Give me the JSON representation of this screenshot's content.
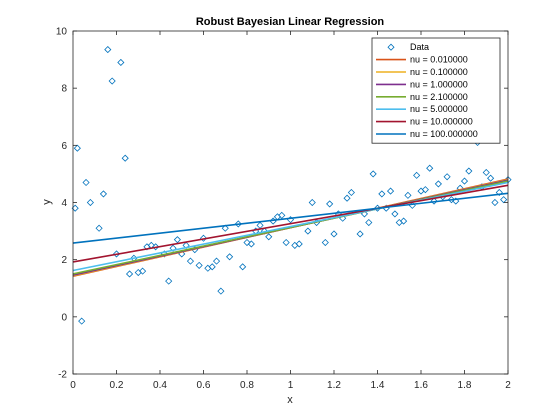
{
  "chart_data": {
    "type": "scatter",
    "title": "Robust Bayesian Linear Regression",
    "xlabel": "x",
    "ylabel": "y",
    "xlim": [
      0,
      2
    ],
    "ylim": [
      -2,
      10
    ],
    "xticks": [
      0,
      0.2,
      0.4,
      0.6,
      0.8,
      1,
      1.2,
      1.4,
      1.6,
      1.8,
      2
    ],
    "xtick_labels": [
      "0",
      "0.2",
      "0.4",
      "0.6",
      "0.8",
      "1",
      "1.2",
      "1.4",
      "1.6",
      "1.8",
      "2"
    ],
    "yticks": [
      -2,
      0,
      2,
      4,
      6,
      8,
      10
    ],
    "ytick_labels": [
      "-2",
      "0",
      "2",
      "4",
      "6",
      "8",
      "10"
    ],
    "grid": false,
    "legend_position": "top-right",
    "data_marker": "open-diamond",
    "data_series": {
      "name": "Data",
      "color": "#0072BD",
      "points": [
        [
          0.01,
          3.8
        ],
        [
          0.02,
          5.9
        ],
        [
          0.04,
          -0.15
        ],
        [
          0.06,
          4.7
        ],
        [
          0.08,
          4.0
        ],
        [
          0.12,
          3.1
        ],
        [
          0.14,
          4.3
        ],
        [
          0.16,
          9.35
        ],
        [
          0.18,
          8.25
        ],
        [
          0.2,
          2.2
        ],
        [
          0.22,
          8.9
        ],
        [
          0.24,
          5.55
        ],
        [
          0.26,
          1.5
        ],
        [
          0.28,
          2.05
        ],
        [
          0.3,
          1.55
        ],
        [
          0.32,
          1.6
        ],
        [
          0.34,
          2.45
        ],
        [
          0.36,
          2.5
        ],
        [
          0.38,
          2.45
        ],
        [
          0.42,
          2.2
        ],
        [
          0.44,
          1.25
        ],
        [
          0.46,
          2.4
        ],
        [
          0.48,
          2.7
        ],
        [
          0.5,
          2.2
        ],
        [
          0.52,
          2.5
        ],
        [
          0.54,
          1.95
        ],
        [
          0.56,
          2.35
        ],
        [
          0.58,
          1.8
        ],
        [
          0.6,
          2.75
        ],
        [
          0.62,
          1.7
        ],
        [
          0.64,
          1.75
        ],
        [
          0.66,
          1.95
        ],
        [
          0.68,
          0.9
        ],
        [
          0.7,
          3.1
        ],
        [
          0.72,
          2.1
        ],
        [
          0.76,
          3.25
        ],
        [
          0.78,
          1.75
        ],
        [
          0.8,
          2.6
        ],
        [
          0.82,
          2.55
        ],
        [
          0.84,
          3.0
        ],
        [
          0.86,
          3.2
        ],
        [
          0.88,
          3.0
        ],
        [
          0.9,
          2.8
        ],
        [
          0.92,
          3.35
        ],
        [
          0.94,
          3.5
        ],
        [
          0.96,
          3.55
        ],
        [
          0.98,
          2.6
        ],
        [
          1.0,
          3.4
        ],
        [
          1.02,
          2.5
        ],
        [
          1.04,
          2.55
        ],
        [
          1.08,
          3.0
        ],
        [
          1.1,
          4.0
        ],
        [
          1.12,
          3.3
        ],
        [
          1.16,
          2.6
        ],
        [
          1.18,
          3.95
        ],
        [
          1.2,
          2.9
        ],
        [
          1.22,
          3.6
        ],
        [
          1.24,
          3.45
        ],
        [
          1.26,
          4.15
        ],
        [
          1.28,
          4.35
        ],
        [
          1.32,
          2.9
        ],
        [
          1.34,
          3.6
        ],
        [
          1.36,
          3.3
        ],
        [
          1.38,
          5.0
        ],
        [
          1.4,
          3.8
        ],
        [
          1.42,
          4.3
        ],
        [
          1.44,
          3.8
        ],
        [
          1.46,
          4.4
        ],
        [
          1.48,
          3.6
        ],
        [
          1.5,
          3.3
        ],
        [
          1.52,
          3.35
        ],
        [
          1.54,
          4.25
        ],
        [
          1.56,
          3.9
        ],
        [
          1.58,
          4.95
        ],
        [
          1.6,
          4.4
        ],
        [
          1.62,
          4.45
        ],
        [
          1.64,
          5.2
        ],
        [
          1.66,
          4.05
        ],
        [
          1.68,
          4.65
        ],
        [
          1.7,
          4.2
        ],
        [
          1.72,
          4.9
        ],
        [
          1.74,
          4.1
        ],
        [
          1.76,
          4.05
        ],
        [
          1.78,
          4.5
        ],
        [
          1.8,
          4.75
        ],
        [
          1.82,
          5.1
        ],
        [
          1.86,
          6.1
        ],
        [
          1.88,
          4.55
        ],
        [
          1.9,
          5.05
        ],
        [
          1.92,
          4.85
        ],
        [
          1.94,
          4.0
        ],
        [
          1.96,
          4.35
        ],
        [
          1.98,
          4.1
        ],
        [
          2.0,
          4.8
        ]
      ]
    },
    "series": [
      {
        "name": "nu = 0.010000",
        "color": "#D95319",
        "points": [
          [
            0,
            1.42
          ],
          [
            2,
            4.82
          ]
        ]
      },
      {
        "name": "nu = 0.100000",
        "color": "#EDB120",
        "points": [
          [
            0,
            1.44
          ],
          [
            2,
            4.8
          ]
        ]
      },
      {
        "name": "nu = 1.000000",
        "color": "#7E2F8E",
        "points": [
          [
            0,
            1.46
          ],
          [
            2,
            4.78
          ]
        ]
      },
      {
        "name": "nu = 2.100000",
        "color": "#77AC30",
        "points": [
          [
            0,
            1.5
          ],
          [
            2,
            4.75
          ]
        ]
      },
      {
        "name": "nu = 5.000000",
        "color": "#4DBEEE",
        "points": [
          [
            0,
            1.62
          ],
          [
            2,
            4.7
          ]
        ]
      },
      {
        "name": "nu = 10.000000",
        "color": "#A2142F",
        "points": [
          [
            0,
            1.92
          ],
          [
            2,
            4.6
          ]
        ]
      },
      {
        "name": "nu = 100.000000",
        "color": "#0072BD",
        "points": [
          [
            0,
            2.58
          ],
          [
            2,
            4.32
          ]
        ]
      }
    ]
  }
}
